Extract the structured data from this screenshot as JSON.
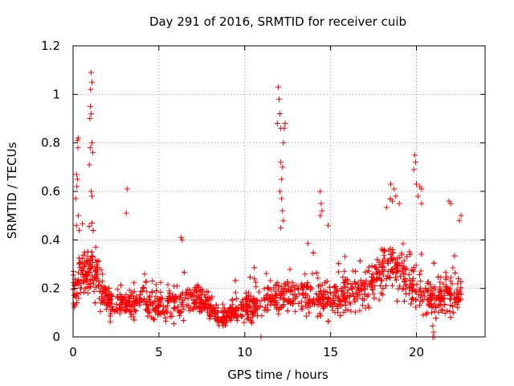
{
  "chart_data": {
    "type": "scatter",
    "title": "Day 291 of 2016, SRMTID for receiver cuib",
    "xlabel": "GPS time / hours",
    "ylabel": "SRMTID / TECUs",
    "xlim": [
      0,
      24
    ],
    "ylim": [
      0,
      1.2
    ],
    "xticks": [
      0,
      5,
      10,
      15,
      20
    ],
    "xtick_labels": [
      "0",
      "5",
      "10",
      "15",
      "20"
    ],
    "yticks": [
      0,
      0.2,
      0.4,
      0.6,
      0.8,
      1.0,
      1.2
    ],
    "ytick_labels": [
      "0",
      "0.2",
      "0.4",
      "0.6",
      "0.8",
      "1",
      "1.2"
    ],
    "grid": true,
    "marker": "+",
    "series": [
      {
        "name": "SRMTID",
        "color": "#ff0000",
        "profile_hours": [
          0,
          0.5,
          1,
          1.5,
          2,
          2.5,
          3,
          4,
          5,
          6,
          7,
          8,
          8.5,
          9,
          10,
          11,
          12,
          12.5,
          13,
          14,
          15,
          16,
          17,
          18,
          18.5,
          19,
          20,
          21,
          22,
          22.6
        ],
        "profile_typical": [
          0.2,
          0.25,
          0.3,
          0.22,
          0.15,
          0.14,
          0.13,
          0.15,
          0.13,
          0.14,
          0.15,
          0.13,
          0.08,
          0.09,
          0.12,
          0.14,
          0.17,
          0.16,
          0.17,
          0.17,
          0.15,
          0.18,
          0.2,
          0.28,
          0.3,
          0.27,
          0.2,
          0.15,
          0.18,
          0.17
        ],
        "profile_spread": [
          0.1,
          0.12,
          0.14,
          0.11,
          0.08,
          0.08,
          0.08,
          0.09,
          0.09,
          0.09,
          0.09,
          0.07,
          0.04,
          0.05,
          0.07,
          0.09,
          0.11,
          0.1,
          0.1,
          0.11,
          0.1,
          0.1,
          0.11,
          0.13,
          0.14,
          0.14,
          0.12,
          0.1,
          0.1,
          0.09
        ],
        "sample_count": 1900,
        "x_range": [
          0,
          22.6
        ],
        "notable_points": [
          [
            1.05,
            1.09
          ],
          [
            1.1,
            1.05
          ],
          [
            1.02,
            1.02
          ],
          [
            1.0,
            0.95
          ],
          [
            1.05,
            0.92
          ],
          [
            0.98,
            0.9
          ],
          [
            1.1,
            0.8
          ],
          [
            1.15,
            0.76
          ],
          [
            1.0,
            0.78
          ],
          [
            0.95,
            0.71
          ],
          [
            1.05,
            0.6
          ],
          [
            1.1,
            0.58
          ],
          [
            0.25,
            0.81
          ],
          [
            0.3,
            0.82
          ],
          [
            0.28,
            0.78
          ],
          [
            0.2,
            0.67
          ],
          [
            0.25,
            0.65
          ],
          [
            0.22,
            0.62
          ],
          [
            0.15,
            0.57
          ],
          [
            0.3,
            0.5
          ],
          [
            0.35,
            0.44
          ],
          [
            0.2,
            0.46
          ],
          [
            3.15,
            0.61
          ],
          [
            3.1,
            0.51
          ],
          [
            6.3,
            0.41
          ],
          [
            6.35,
            0.4
          ],
          [
            11.95,
            1.03
          ],
          [
            12.0,
            0.98
          ],
          [
            12.05,
            0.92
          ],
          [
            11.9,
            0.88
          ],
          [
            12.1,
            0.86
          ],
          [
            12.35,
            0.88
          ],
          [
            12.3,
            0.86
          ],
          [
            12.25,
            0.8
          ],
          [
            12.1,
            0.72
          ],
          [
            12.2,
            0.7
          ],
          [
            12.15,
            0.65
          ],
          [
            12.05,
            0.6
          ],
          [
            12.15,
            0.57
          ],
          [
            12.2,
            0.52
          ],
          [
            12.25,
            0.48
          ],
          [
            12.1,
            0.45
          ],
          [
            14.4,
            0.6
          ],
          [
            14.45,
            0.55
          ],
          [
            14.5,
            0.52
          ],
          [
            14.4,
            0.5
          ],
          [
            14.85,
            0.46
          ],
          [
            18.5,
            0.63
          ],
          [
            18.7,
            0.61
          ],
          [
            18.8,
            0.58
          ],
          [
            18.6,
            0.56
          ],
          [
            19.0,
            0.55
          ],
          [
            19.9,
            0.75
          ],
          [
            19.95,
            0.72
          ],
          [
            19.85,
            0.69
          ],
          [
            20.0,
            0.63
          ],
          [
            20.2,
            0.62
          ],
          [
            20.3,
            0.61
          ],
          [
            20.1,
            0.58
          ],
          [
            20.3,
            0.55
          ],
          [
            21.9,
            0.56
          ],
          [
            22.0,
            0.55
          ],
          [
            22.6,
            0.5
          ],
          [
            22.5,
            0.48
          ],
          [
            10.95,
            0.0
          ],
          [
            20.95,
            0.0
          ],
          [
            21.05,
            0.0
          ],
          [
            21.0,
            0.02
          ]
        ]
      }
    ]
  }
}
